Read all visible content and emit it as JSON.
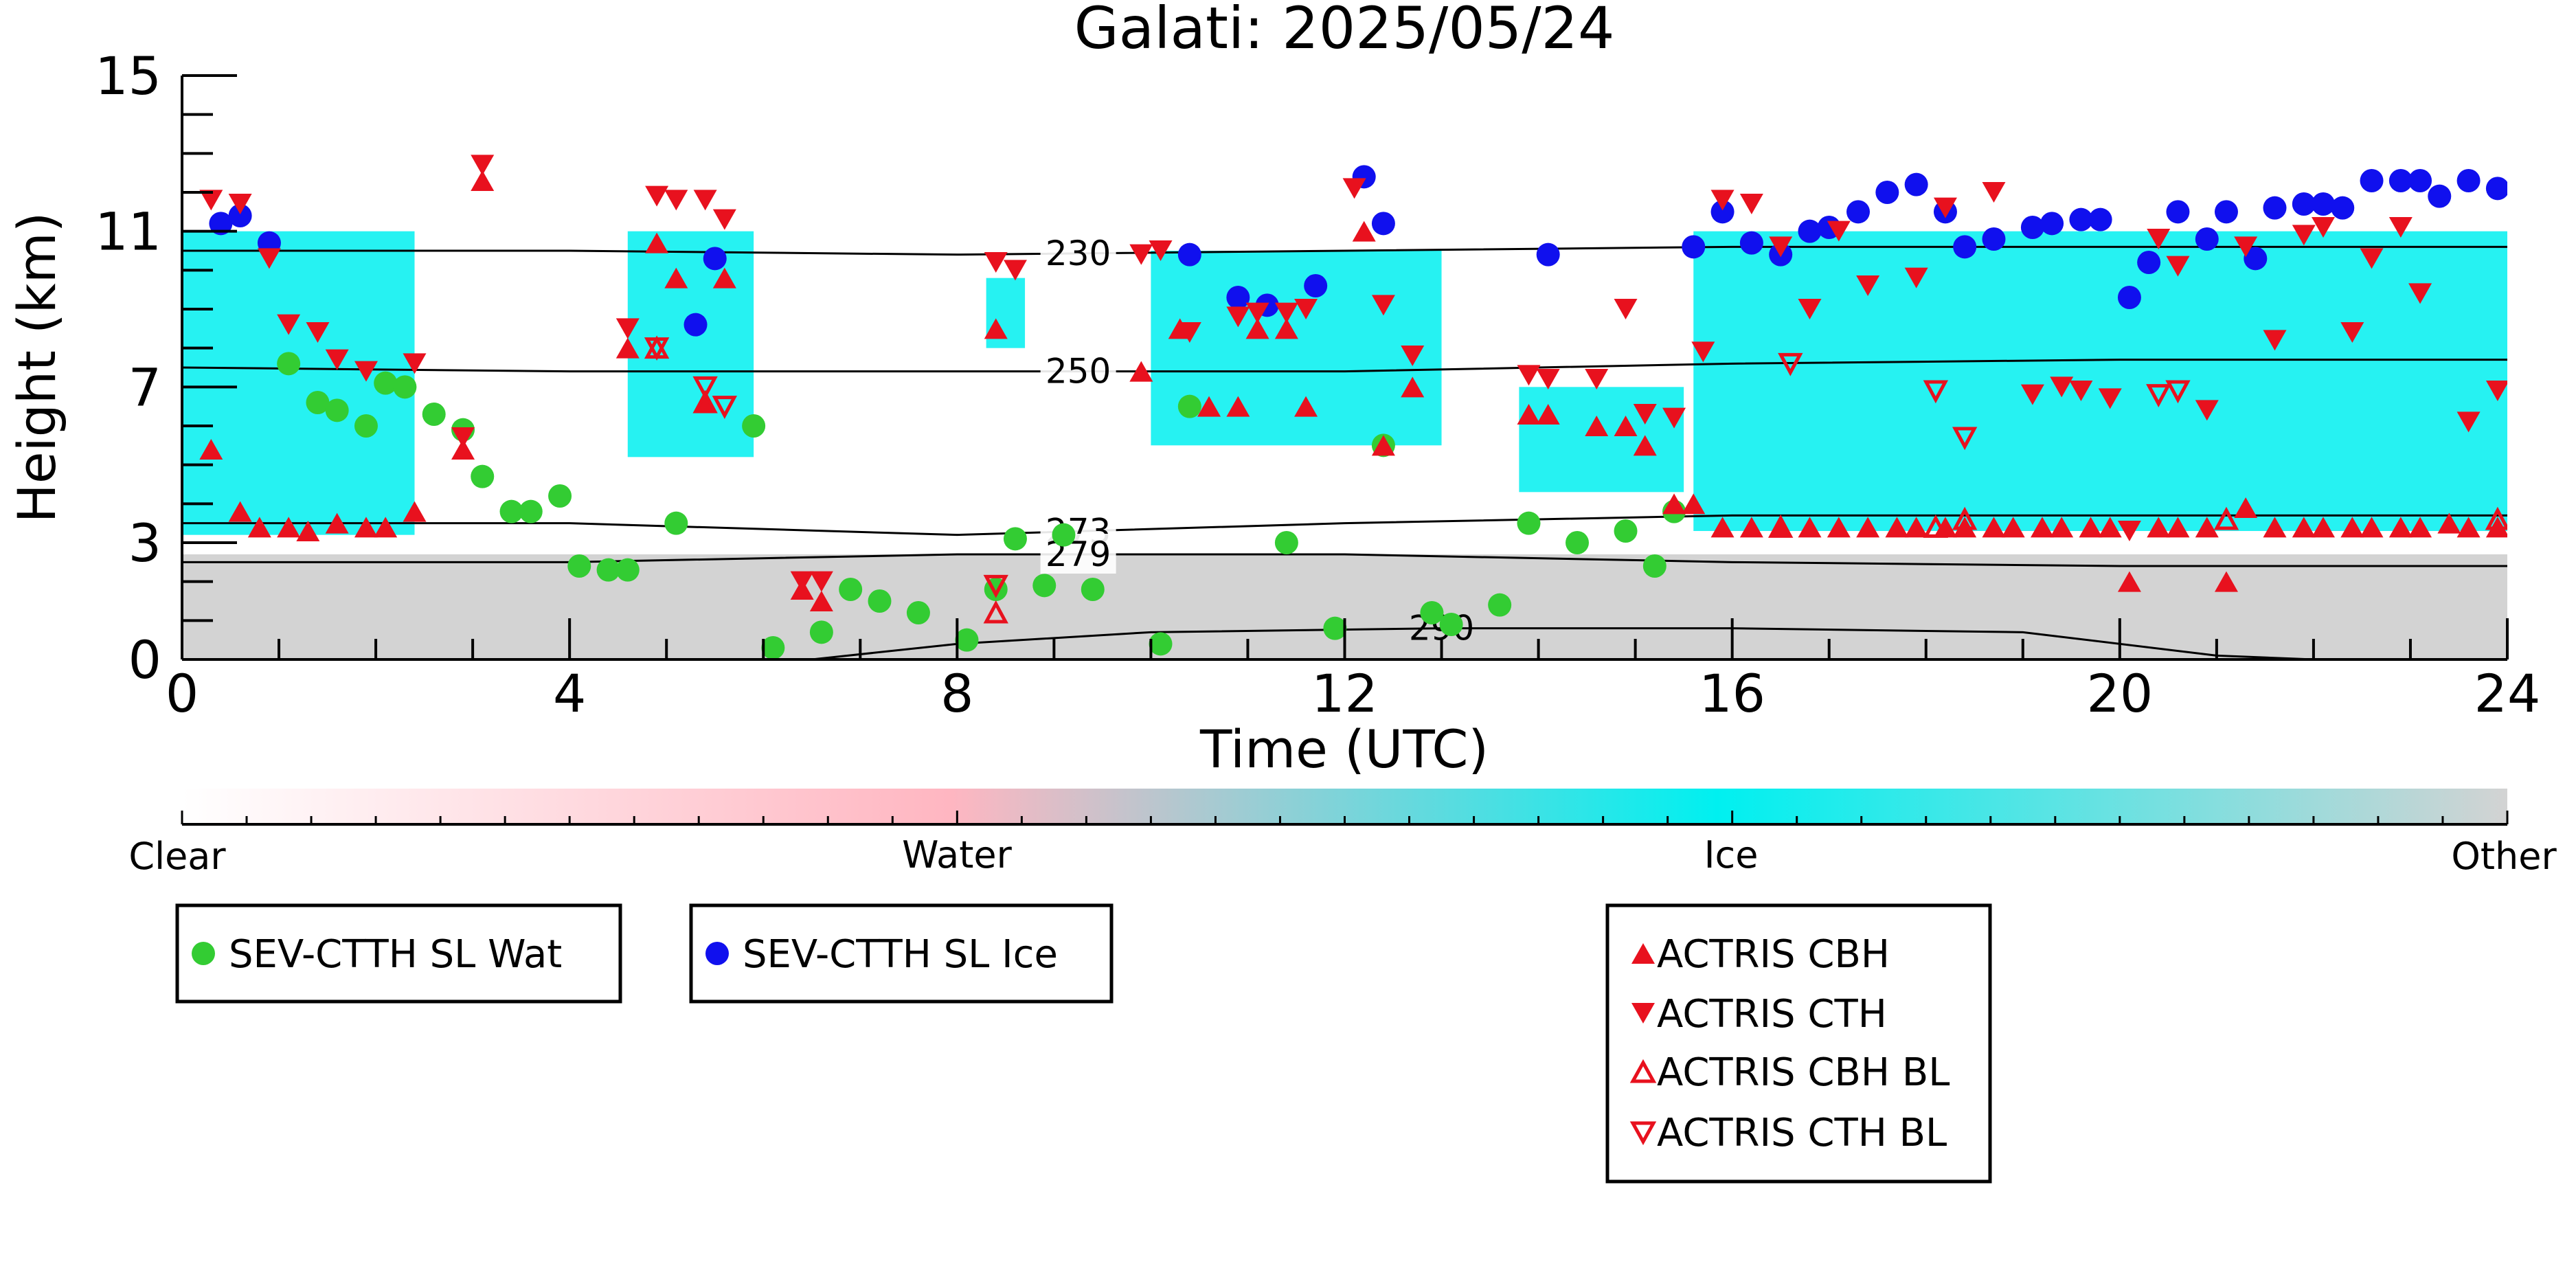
{
  "chart_data": {
    "type": "scatter",
    "title": "Galati: 2025/05/24",
    "xlabel": "Time (UTC)",
    "ylabel": "Height (km)",
    "xlim": [
      0,
      24
    ],
    "ylim": [
      0,
      15
    ],
    "xticks": [
      0,
      4,
      8,
      12,
      16,
      20,
      24
    ],
    "yticks": [
      0,
      3,
      7,
      11,
      15
    ],
    "grid": false,
    "colorbar": {
      "labels": [
        "Clear",
        "Water",
        "Ice",
        "Other"
      ],
      "colors": {
        "clear": "#ffffff",
        "water": "#ffb6c1",
        "ice": "#00f0f0",
        "other": "#d3d3d3"
      }
    },
    "contours": [
      {
        "label": "230",
        "line": [
          [
            0,
            10.5
          ],
          [
            4,
            10.5
          ],
          [
            8,
            10.4
          ],
          [
            12,
            10.5
          ],
          [
            16,
            10.6
          ],
          [
            20,
            10.6
          ],
          [
            24,
            10.6
          ]
        ]
      },
      {
        "label": "250",
        "line": [
          [
            0,
            7.5
          ],
          [
            4,
            7.4
          ],
          [
            8,
            7.4
          ],
          [
            12,
            7.4
          ],
          [
            16,
            7.6
          ],
          [
            20,
            7.7
          ],
          [
            24,
            7.7
          ]
        ]
      },
      {
        "label": "273",
        "line": [
          [
            0,
            3.5
          ],
          [
            4,
            3.5
          ],
          [
            8,
            3.2
          ],
          [
            12,
            3.5
          ],
          [
            16,
            3.7
          ],
          [
            20,
            3.7
          ],
          [
            24,
            3.7
          ]
        ]
      },
      {
        "label": "279",
        "line": [
          [
            0,
            2.5
          ],
          [
            4,
            2.5
          ],
          [
            8,
            2.7
          ],
          [
            12,
            2.7
          ],
          [
            16,
            2.5
          ],
          [
            20,
            2.4
          ],
          [
            24,
            2.4
          ]
        ]
      },
      {
        "label": "290",
        "line": [
          [
            6.5,
            0
          ],
          [
            8,
            0.4
          ],
          [
            10,
            0.7
          ],
          [
            13,
            0.8
          ],
          [
            16,
            0.8
          ],
          [
            19,
            0.7
          ],
          [
            21,
            0.1
          ],
          [
            22,
            0
          ]
        ]
      }
    ],
    "cloud_regions": [
      {
        "class": "other",
        "x": [
          0,
          24
        ],
        "y": [
          0,
          2.7
        ]
      },
      {
        "class": "ice",
        "x": [
          0,
          2.4
        ],
        "y": [
          3.2,
          11.0
        ]
      },
      {
        "class": "ice",
        "x": [
          4.6,
          5.9
        ],
        "y": [
          5.2,
          11.0
        ]
      },
      {
        "class": "ice",
        "x": [
          8.3,
          8.7
        ],
        "y": [
          8.0,
          9.8
        ]
      },
      {
        "class": "ice",
        "x": [
          10.0,
          13.0
        ],
        "y": [
          5.5,
          10.5
        ]
      },
      {
        "class": "ice",
        "x": [
          13.8,
          15.5
        ],
        "y": [
          4.3,
          7.0
        ]
      },
      {
        "class": "ice",
        "x": [
          15.6,
          24
        ],
        "y": [
          3.3,
          11.0
        ]
      }
    ],
    "series": [
      {
        "name": "SEV-CTTH SL Wat",
        "marker": "circle",
        "color": "#33cc33",
        "x": [
          1.1,
          1.4,
          1.6,
          1.9,
          2.1,
          2.3,
          2.6,
          2.9,
          3.1,
          3.4,
          3.6,
          3.9,
          4.1,
          4.4,
          4.6,
          5.1,
          5.9,
          6.1,
          6.6,
          6.9,
          7.2,
          7.6,
          8.1,
          8.4,
          8.6,
          8.9,
          9.1,
          9.4,
          10.1,
          10.4,
          11.4,
          11.9,
          12.4,
          12.9,
          13.1,
          13.6,
          13.9,
          14.4,
          14.9,
          15.2,
          15.4
        ],
        "y": [
          7.6,
          6.6,
          6.4,
          6.0,
          7.1,
          7.0,
          6.3,
          5.9,
          4.7,
          3.8,
          3.8,
          4.2,
          2.4,
          2.3,
          2.3,
          3.5,
          6.0,
          0.3,
          0.7,
          1.8,
          1.5,
          1.2,
          0.5,
          1.8,
          3.1,
          1.9,
          3.2,
          1.8,
          0.4,
          6.5,
          3.0,
          0.8,
          5.5,
          1.2,
          0.9,
          1.4,
          3.5,
          3.0,
          3.3,
          2.4,
          3.8
        ]
      },
      {
        "name": "SEV-CTTH SL Ice",
        "marker": "circle",
        "color": "#1010ee",
        "x": [
          0.4,
          0.6,
          0.9,
          5.3,
          5.5,
          10.4,
          10.9,
          11.2,
          11.7,
          12.2,
          12.4,
          14.1,
          15.6,
          15.9,
          16.2,
          16.5,
          16.8,
          17.0,
          17.3,
          17.6,
          17.9,
          18.2,
          18.4,
          18.7,
          19.1,
          19.3,
          19.6,
          19.8,
          20.1,
          20.3,
          20.6,
          20.9,
          21.1,
          21.4,
          21.6,
          21.9,
          22.1,
          22.3,
          22.6,
          22.9,
          23.1,
          23.3,
          23.6,
          23.9
        ],
        "y": [
          11.2,
          11.4,
          10.7,
          8.6,
          10.3,
          10.4,
          9.3,
          9.1,
          9.6,
          12.4,
          11.2,
          10.4,
          10.6,
          11.5,
          10.7,
          10.4,
          11.0,
          11.1,
          11.5,
          12.0,
          12.2,
          11.5,
          10.6,
          10.8,
          11.1,
          11.2,
          11.3,
          11.3,
          9.3,
          10.2,
          11.5,
          10.8,
          11.5,
          10.3,
          11.6,
          11.7,
          11.7,
          11.6,
          12.3,
          12.3,
          12.3,
          11.9,
          12.3,
          12.1
        ]
      },
      {
        "name": "ACTRIS CBH",
        "marker": "triangle-up",
        "color": "#e8111e",
        "x": [
          0.3,
          0.6,
          0.8,
          1.1,
          1.3,
          1.6,
          1.9,
          2.1,
          2.4,
          2.9,
          3.1,
          4.6,
          4.9,
          5.1,
          5.4,
          5.6,
          6.4,
          6.6,
          8.4,
          9.9,
          10.3,
          10.6,
          10.9,
          11.1,
          11.4,
          11.6,
          12.2,
          12.4,
          12.7,
          13.9,
          14.1,
          14.6,
          14.9,
          15.1,
          15.4,
          15.6,
          15.9,
          16.2,
          16.5,
          16.8,
          17.1,
          17.4,
          17.7,
          17.9,
          18.2,
          18.4,
          18.7,
          18.9,
          19.2,
          19.4,
          19.7,
          19.9,
          20.1,
          20.4,
          20.6,
          20.9,
          21.1,
          21.3,
          21.6,
          21.9,
          22.1,
          22.4,
          22.6,
          22.9,
          23.1,
          23.4,
          23.6,
          23.9
        ],
        "y": [
          5.4,
          3.8,
          3.4,
          3.4,
          3.3,
          3.5,
          3.4,
          3.4,
          3.8,
          5.4,
          12.3,
          8.0,
          10.7,
          9.8,
          6.6,
          9.8,
          1.8,
          1.5,
          8.5,
          7.4,
          8.5,
          6.5,
          6.5,
          8.5,
          8.5,
          6.5,
          11.0,
          5.5,
          7.0,
          6.3,
          6.3,
          6.0,
          6.0,
          5.5,
          4.0,
          4.0,
          3.4,
          3.4,
          3.4,
          3.4,
          3.4,
          3.4,
          3.4,
          3.4,
          3.4,
          3.4,
          3.4,
          3.4,
          3.4,
          3.4,
          3.4,
          3.4,
          2.0,
          3.4,
          3.4,
          3.4,
          2.0,
          3.9,
          3.4,
          3.4,
          3.4,
          3.4,
          3.4,
          3.4,
          3.4,
          3.5,
          3.4,
          3.4
        ]
      },
      {
        "name": "ACTRIS CTH",
        "marker": "triangle-down",
        "color": "#e8111e",
        "x": [
          0.3,
          0.6,
          0.9,
          1.1,
          1.4,
          1.6,
          1.9,
          2.4,
          2.9,
          3.1,
          4.6,
          4.9,
          5.1,
          5.4,
          5.6,
          6.4,
          6.6,
          8.4,
          8.6,
          9.9,
          10.1,
          10.4,
          10.9,
          11.1,
          11.4,
          11.6,
          12.1,
          12.4,
          12.7,
          13.9,
          14.1,
          14.6,
          14.9,
          15.1,
          15.4,
          15.7,
          15.9,
          16.2,
          16.5,
          16.8,
          17.1,
          17.4,
          17.9,
          18.2,
          18.7,
          19.1,
          19.4,
          19.6,
          19.9,
          20.1,
          20.4,
          20.6,
          20.9,
          21.3,
          21.6,
          21.9,
          22.1,
          22.4,
          22.6,
          22.9,
          23.1,
          23.6,
          23.9
        ],
        "y": [
          11.8,
          11.7,
          10.3,
          8.6,
          8.4,
          7.7,
          7.4,
          7.6,
          5.7,
          12.7,
          8.5,
          11.9,
          11.8,
          11.8,
          11.3,
          2.0,
          2.0,
          10.2,
          10.0,
          10.4,
          10.5,
          8.4,
          8.8,
          8.9,
          8.9,
          9.0,
          12.1,
          9.1,
          7.8,
          7.3,
          7.2,
          7.2,
          9.0,
          6.3,
          6.2,
          7.9,
          11.8,
          11.7,
          10.6,
          9.0,
          11.0,
          9.6,
          9.8,
          11.6,
          12.0,
          6.8,
          7.0,
          6.9,
          6.7,
          3.3,
          10.8,
          10.1,
          6.4,
          10.6,
          8.2,
          10.9,
          11.1,
          8.4,
          10.3,
          11.1,
          9.4,
          6.1,
          6.9
        ]
      },
      {
        "name": "ACTRIS CBH BL",
        "marker": "triangle-up-open",
        "color": "#e8111e",
        "x": [
          4.9,
          5.4,
          8.4,
          16.5,
          18.1,
          18.4,
          21.1,
          23.9
        ],
        "y": [
          8.0,
          6.6,
          1.2,
          3.4,
          3.4,
          3.6,
          3.6,
          3.6
        ],
        "hidden_note": ""
      },
      {
        "name": "ACTRIS CTH BL",
        "marker": "triangle-down-open",
        "color": "#e8111e",
        "x": [
          4.9,
          5.4,
          5.6,
          8.4,
          16.6,
          18.1,
          18.4,
          20.4,
          20.6
        ],
        "y": [
          8.0,
          7.0,
          6.5,
          1.9,
          7.6,
          6.9,
          5.7,
          6.8,
          6.9
        ]
      }
    ]
  },
  "legend_groups": [
    {
      "items": [
        "SEV-CTTH SL Wat"
      ]
    },
    {
      "items": [
        "SEV-CTTH SL Ice"
      ]
    },
    {
      "items": [
        "ACTRIS CBH",
        "ACTRIS CTH",
        "ACTRIS CBH BL",
        "ACTRIS CTH BL"
      ]
    }
  ]
}
